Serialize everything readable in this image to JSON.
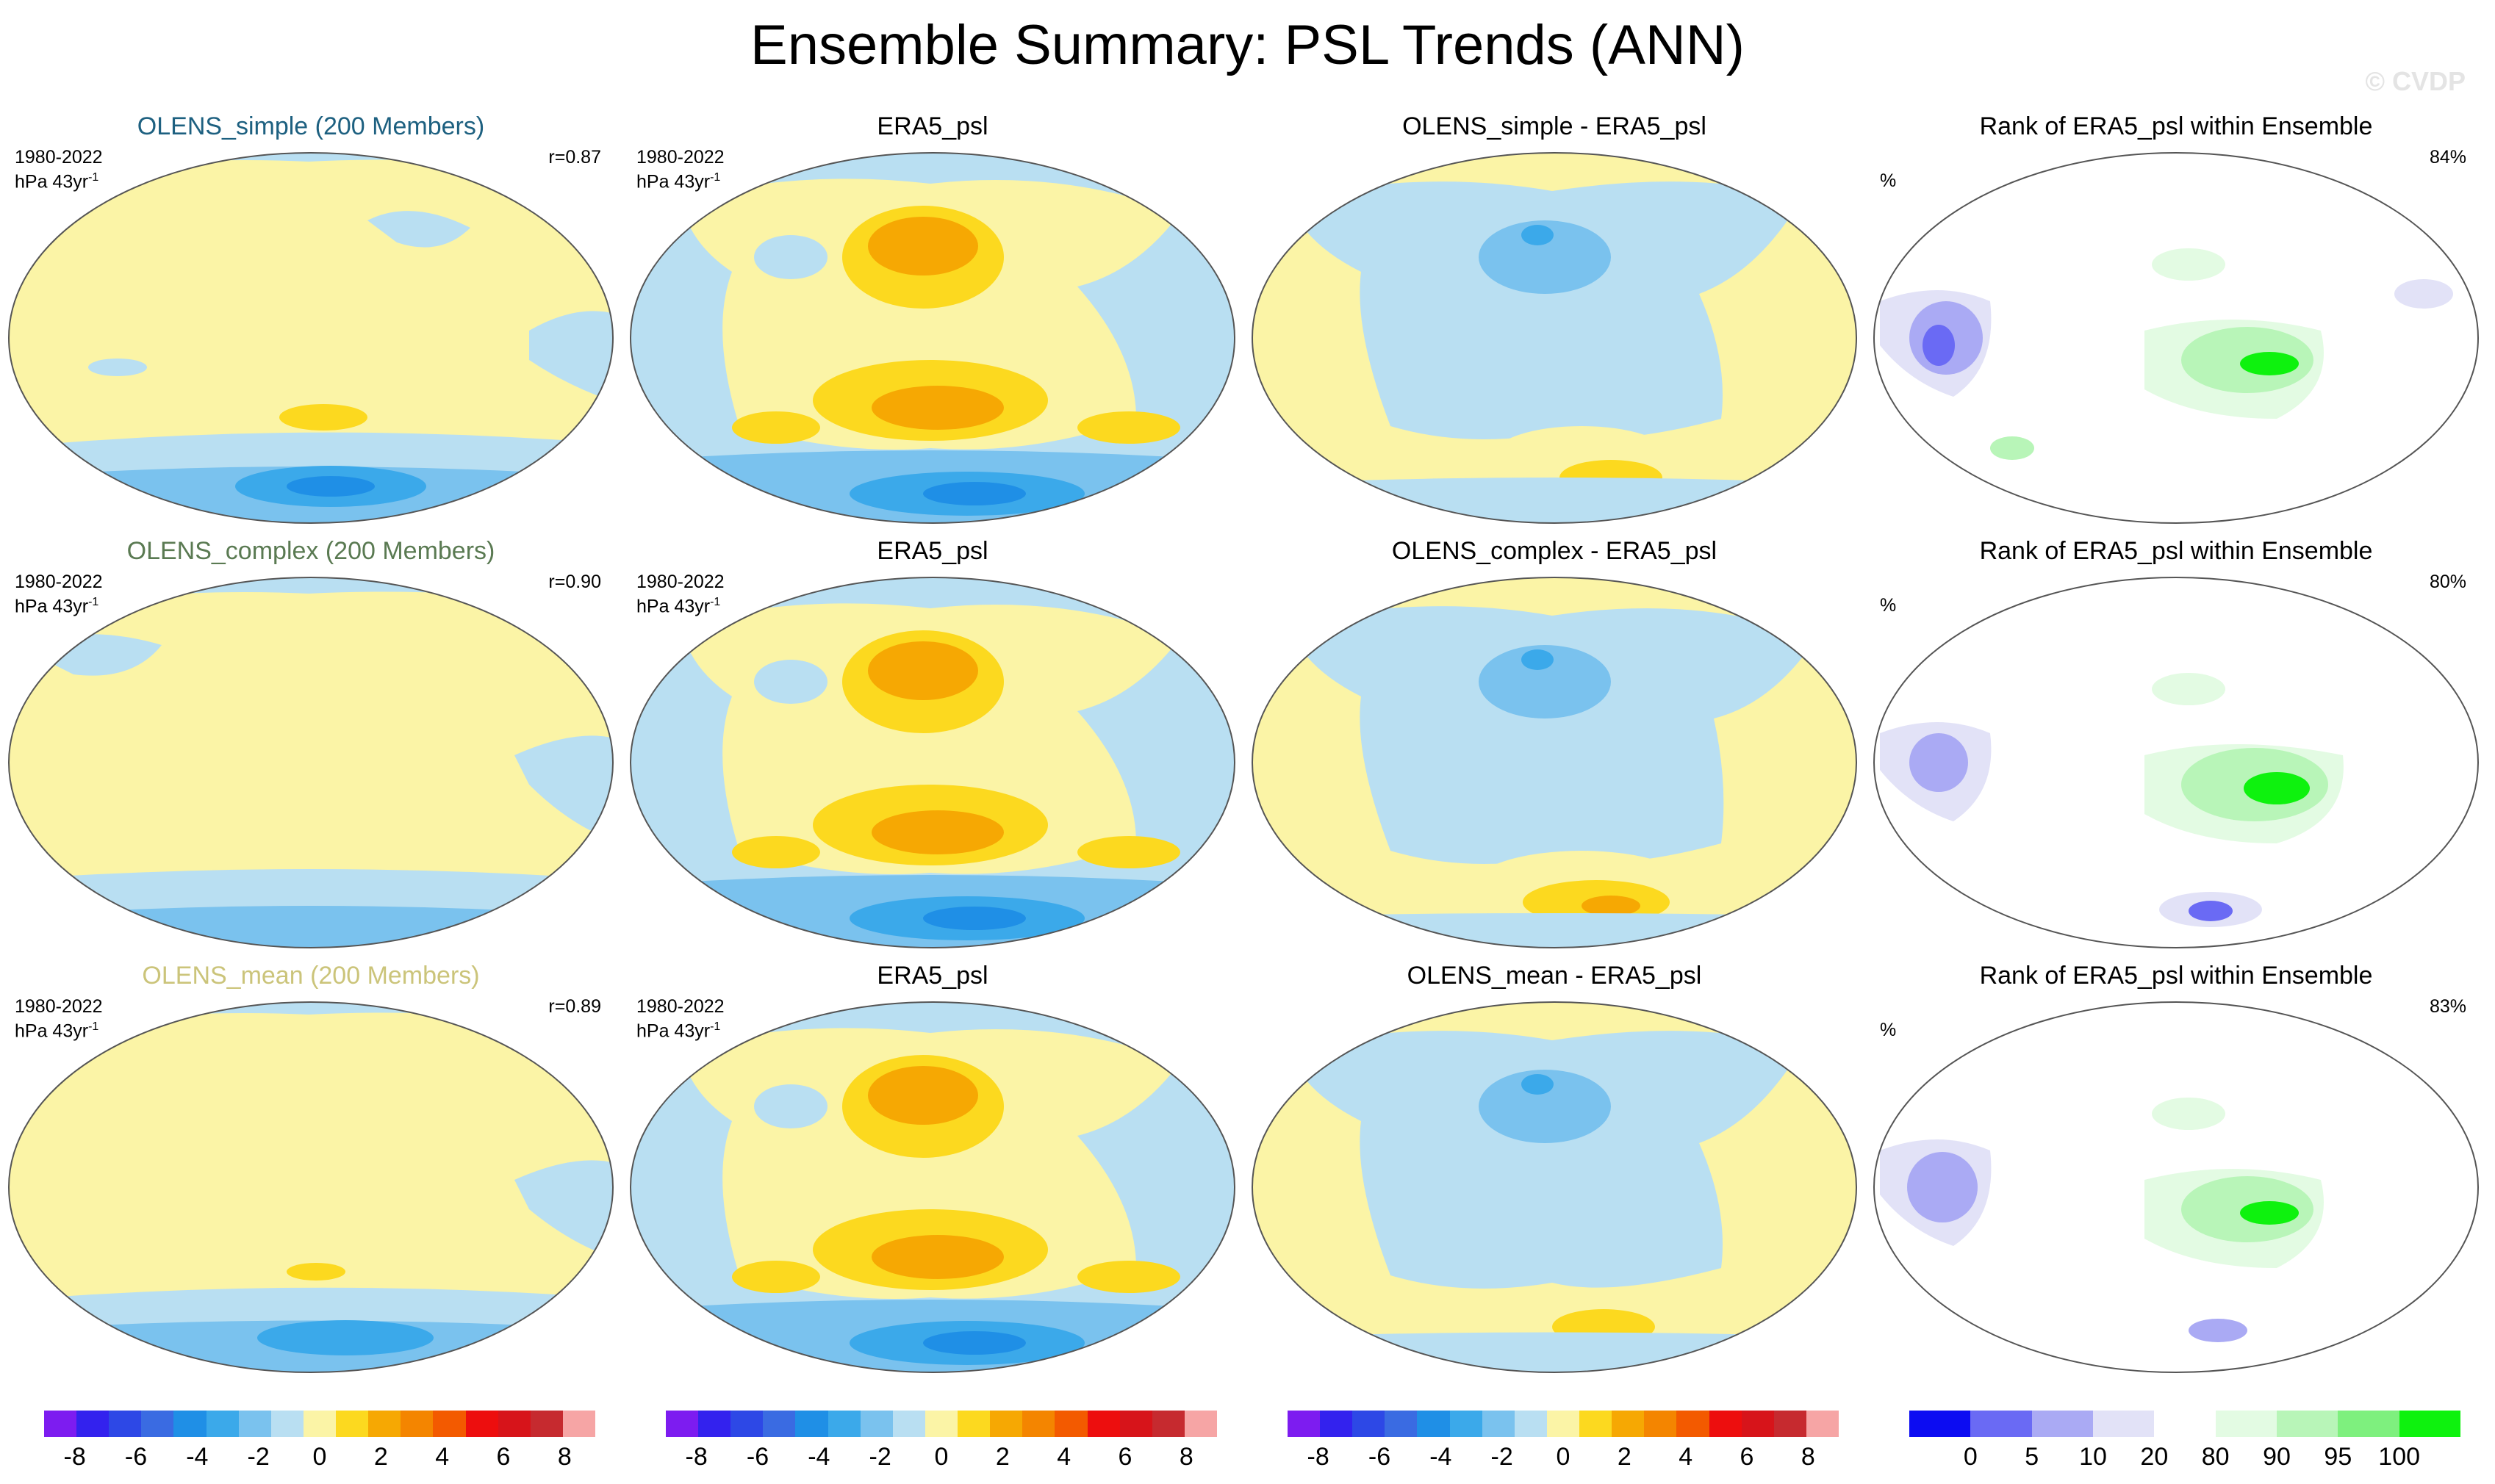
{
  "title": "Ensemble Summary: PSL Trends (ANN)",
  "watermark": "© CVDP",
  "period": "1980-2022",
  "units_base": "hPa 43yr",
  "units_exp": "-1",
  "pct_symbol": "%",
  "colors": {
    "yellow_light": "#fbf4a6",
    "yellow": "#fcd91f",
    "orange": "#f6a803",
    "blue_light": "#b9dff2",
    "blue": "#7ac2ee",
    "blue_mid": "#3ba9ea",
    "blue_deep": "#1f8fe6",
    "ocean": "#b9dff2"
  },
  "rows": [
    {
      "ens_title": "OLENS_simple (200 Members)",
      "ens_color": "#1d6080",
      "r": "r=0.87",
      "obs_title": "ERA5_psl",
      "diff_title": "OLENS_simple - ERA5_psl",
      "rank_title": "Rank of ERA5_psl within Ensemble",
      "rank_pct": "84%"
    },
    {
      "ens_title": "OLENS_complex (200 Members)",
      "ens_color": "#5a7a52",
      "r": "r=0.90",
      "obs_title": "ERA5_psl",
      "diff_title": "OLENS_complex - ERA5_psl",
      "rank_title": "Rank of ERA5_psl within Ensemble",
      "rank_pct": "80%"
    },
    {
      "ens_title": "OLENS_mean (200 Members)",
      "ens_color": "#cbc47a",
      "r": "r=0.89",
      "obs_title": "ERA5_psl",
      "diff_title": "OLENS_mean - ERA5_psl",
      "rank_title": "Rank of ERA5_psl within Ensemble",
      "rank_pct": "83%"
    }
  ],
  "chart_data": {
    "type": "heatmap",
    "title": "Ensemble Summary: PSL Trends (ANN)",
    "projection": "Robinson, Pacific-centered global maps",
    "trend_colorbar": {
      "units": "hPa 43yr-1",
      "colors": [
        "#7d1cf0",
        "#3322ee",
        "#2d48e6",
        "#3a6be2",
        "#1f8fe6",
        "#3ba9ea",
        "#7ac2ee",
        "#b9dff2",
        "#fbf4a6",
        "#fcd91f",
        "#f6a803",
        "#f48500",
        "#f35a00",
        "#ed0e0e",
        "#d7141a",
        "#c62a2f",
        "#f6a5a5"
      ],
      "tick_labels": [
        "-8",
        "-6",
        "-4",
        "-2",
        "0",
        "2",
        "4",
        "6",
        "8"
      ],
      "range": [
        -9,
        9
      ]
    },
    "rank_colorbar": {
      "units": "%",
      "colors": [
        "#0c0cf2",
        "#6a6af4",
        "#aaaaf4",
        "#e2e2f7",
        "#ffffff",
        "#e3fbe3",
        "#b8f5b8",
        "#7ef07e",
        "#0ef20e"
      ],
      "tick_labels": [
        "0",
        "5",
        "10",
        "20",
        "80",
        "90",
        "95",
        "100"
      ],
      "boundaries": [
        0,
        5,
        10,
        20,
        80,
        90,
        95,
        100
      ]
    },
    "panels": [
      {
        "row": 1,
        "col": 1,
        "title": "OLENS_simple (200 Members)",
        "pattern_correlation": 0.87
      },
      {
        "row": 1,
        "col": 2,
        "title": "ERA5_psl"
      },
      {
        "row": 1,
        "col": 3,
        "title": "OLENS_simple - ERA5_psl"
      },
      {
        "row": 1,
        "col": 4,
        "title": "Rank of ERA5_psl within Ensemble",
        "percent": 84
      },
      {
        "row": 2,
        "col": 1,
        "title": "OLENS_complex (200 Members)",
        "pattern_correlation": 0.9
      },
      {
        "row": 2,
        "col": 2,
        "title": "ERA5_psl"
      },
      {
        "row": 2,
        "col": 3,
        "title": "OLENS_complex - ERA5_psl"
      },
      {
        "row": 2,
        "col": 4,
        "title": "Rank of ERA5_psl within Ensemble",
        "percent": 80
      },
      {
        "row": 3,
        "col": 1,
        "title": "OLENS_mean (200 Members)",
        "pattern_correlation": 0.89
      },
      {
        "row": 3,
        "col": 2,
        "title": "ERA5_psl"
      },
      {
        "row": 3,
        "col": 3,
        "title": "OLENS_mean - ERA5_psl"
      },
      {
        "row": 3,
        "col": 4,
        "title": "Rank of ERA5_psl within Ensemble",
        "percent": 83
      }
    ]
  }
}
